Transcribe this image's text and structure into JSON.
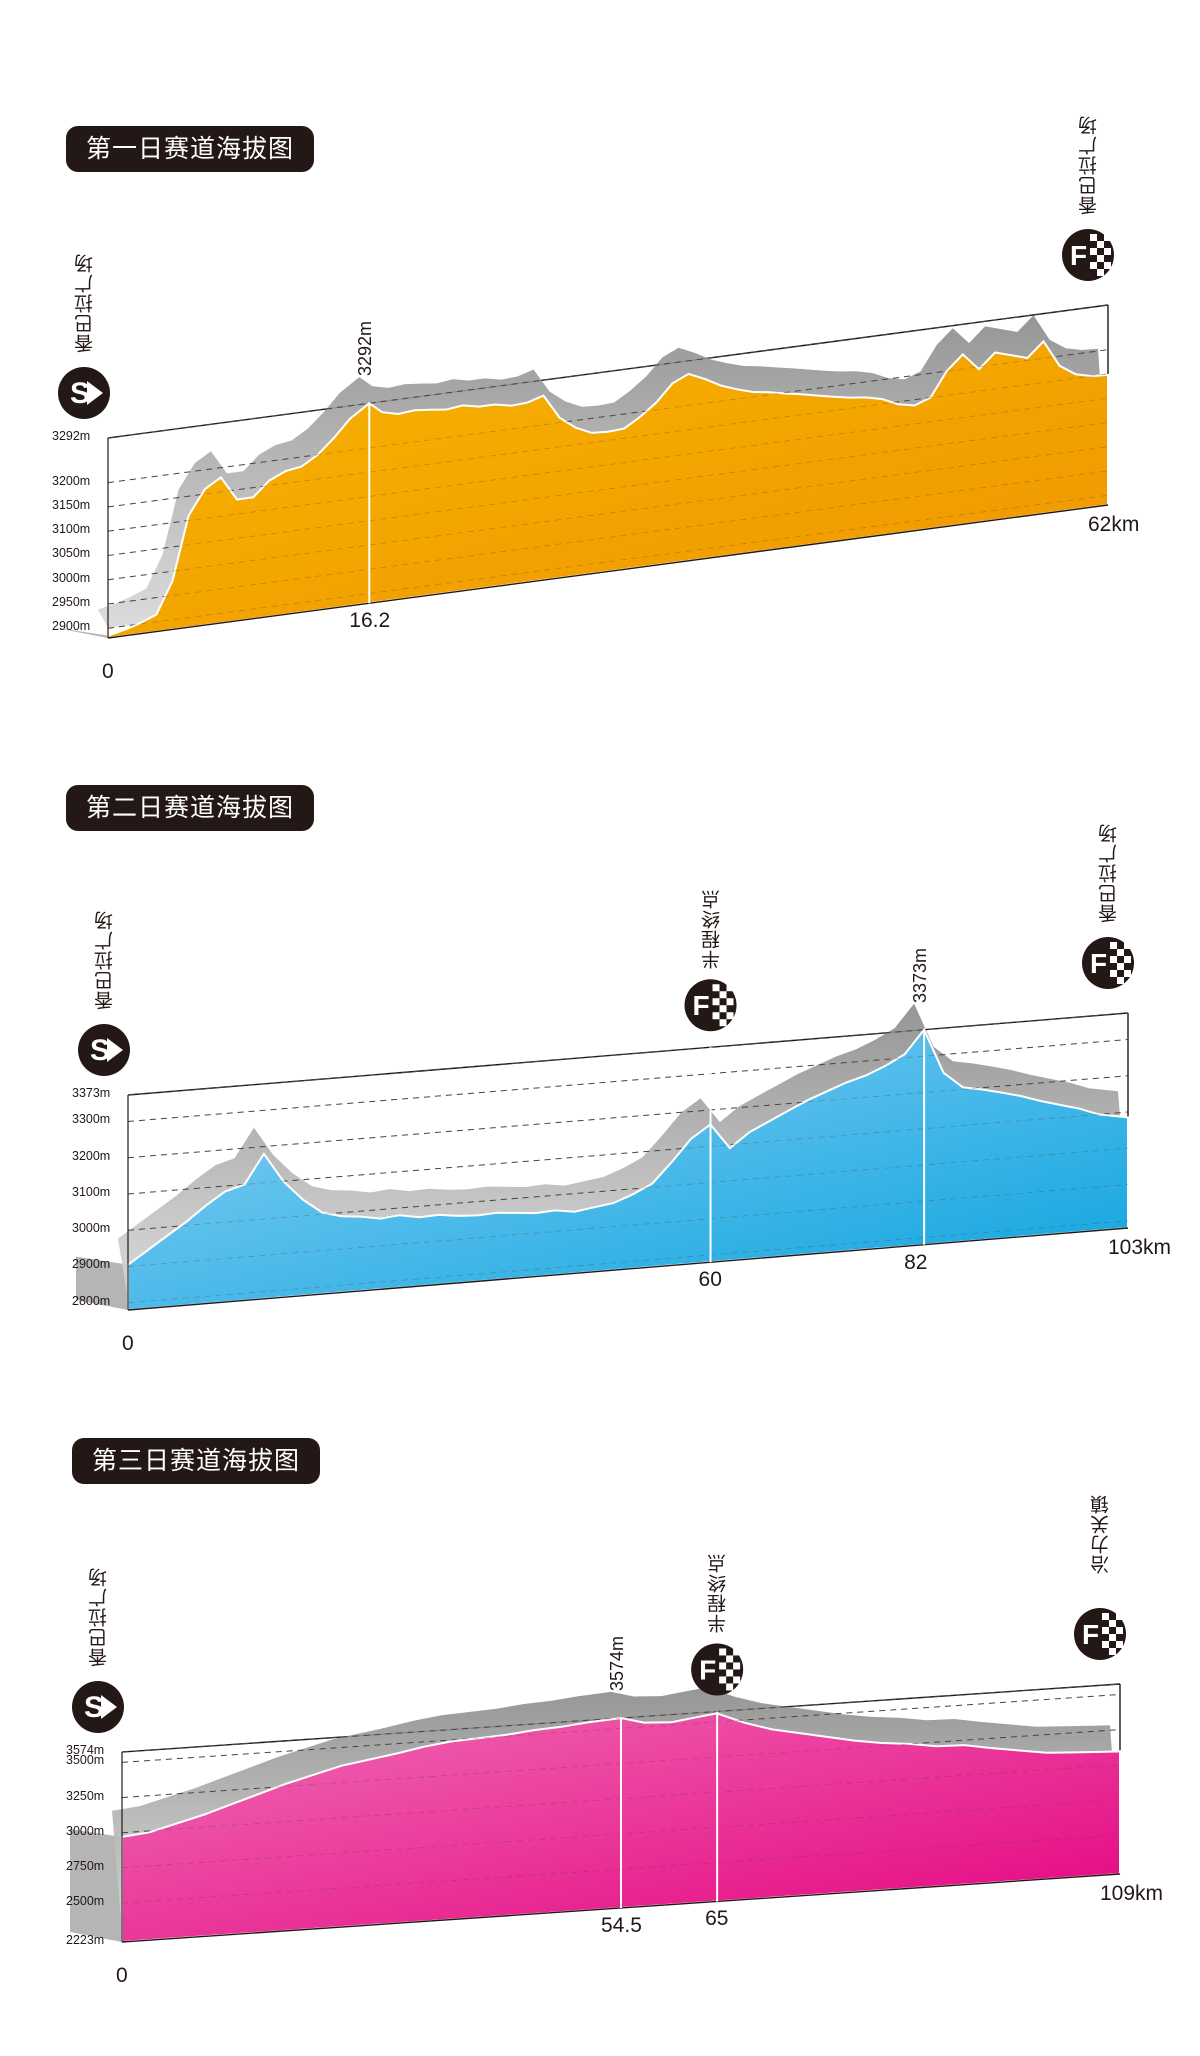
{
  "chart_data": [
    {
      "type": "area",
      "title": "第一日赛道海拔图",
      "start_label": "香巴拉广场",
      "finish_label": "香巴拉广场",
      "start_marker": "S",
      "finish_marker": "F",
      "x_start_label": "0",
      "x_end_label": "62km",
      "ylim": [
        2880,
        3292
      ],
      "y_ticks": [
        "2900m",
        "2950m",
        "3000m",
        "3050m",
        "3100m",
        "3150m",
        "3200m",
        "3292m"
      ],
      "y_tick_values": [
        2900,
        2950,
        3000,
        3050,
        3100,
        3150,
        3200,
        3292
      ],
      "xlim": [
        0,
        62
      ],
      "peak": {
        "x": 16.2,
        "x_label": "16.2",
        "elevation_label": "3292m"
      },
      "midpoint": null,
      "color_top": "#f7b500",
      "color_bottom": "#ef9400",
      "x": [
        0,
        1,
        2,
        3,
        4,
        5,
        6,
        7,
        8,
        9,
        10,
        11,
        12,
        13,
        14,
        15,
        16.2,
        17,
        18,
        19,
        20,
        21,
        22,
        23,
        24,
        25,
        26,
        27,
        28,
        29,
        30,
        31,
        32,
        33,
        34,
        35,
        36,
        37,
        38,
        39,
        40,
        41,
        42,
        43,
        44,
        45,
        46,
        47,
        48,
        49,
        50,
        51,
        52,
        53,
        54,
        55,
        56,
        57,
        58,
        59,
        60,
        61,
        62
      ],
      "y": [
        2885,
        2892,
        2902,
        2915,
        2980,
        3110,
        3160,
        3180,
        3130,
        3130,
        3160,
        3175,
        3180,
        3200,
        3230,
        3265,
        3292,
        3270,
        3262,
        3265,
        3262,
        3258,
        3262,
        3255,
        3255,
        3248,
        3250,
        3260,
        3210,
        3185,
        3170,
        3168,
        3170,
        3190,
        3215,
        3250,
        3265,
        3250,
        3232,
        3220,
        3210,
        3205,
        3198,
        3192,
        3185,
        3178,
        3172,
        3168,
        3160,
        3145,
        3138,
        3150,
        3200,
        3230,
        3195,
        3225,
        3215,
        3205,
        3235,
        3180,
        3158,
        3150,
        3148
      ]
    },
    {
      "type": "area",
      "title": "第二日赛道海拔图",
      "start_label": "香巴拉广场",
      "finish_label": "香巴拉广场",
      "start_marker": "S",
      "finish_marker": "F",
      "x_start_label": "0",
      "x_end_label": "103km",
      "ylim": [
        2780,
        3373
      ],
      "y_ticks": [
        "2800m",
        "2900m",
        "3000m",
        "3100m",
        "3200m",
        "3300m",
        "3373m"
      ],
      "y_tick_values": [
        2800,
        2900,
        3000,
        3100,
        3200,
        3300,
        3373
      ],
      "xlim": [
        0,
        103
      ],
      "peak": {
        "x": 82,
        "x_label": "82",
        "elevation_label": "3373m"
      },
      "midpoint": {
        "x": 60,
        "x_label": "60",
        "label": "半程终点",
        "marker": "F"
      },
      "color_top": "#8fd2f5",
      "color_bottom": "#08a2de",
      "x": [
        0,
        2,
        4,
        6,
        8,
        10,
        12,
        14,
        16,
        18,
        20,
        22,
        24,
        26,
        28,
        30,
        32,
        34,
        36,
        38,
        40,
        42,
        44,
        46,
        48,
        50,
        52,
        54,
        56,
        58,
        60,
        62,
        64,
        66,
        68,
        70,
        72,
        74,
        76,
        78,
        80,
        82,
        84,
        86,
        88,
        90,
        92,
        94,
        96,
        98,
        100,
        103
      ],
      "y": [
        2905,
        2940,
        2975,
        3010,
        3050,
        3085,
        3100,
        3180,
        3100,
        3045,
        3005,
        2990,
        2985,
        2975,
        2980,
        2970,
        2972,
        2965,
        2962,
        2965,
        2960,
        2955,
        2958,
        2950,
        2958,
        2965,
        2985,
        3010,
        3065,
        3125,
        3160,
        3090,
        3130,
        3155,
        3180,
        3205,
        3225,
        3245,
        3260,
        3282,
        3310,
        3373,
        3250,
        3205,
        3195,
        3182,
        3168,
        3150,
        3135,
        3120,
        3100,
        3085
      ]
    },
    {
      "type": "area",
      "title": "第三日赛道海拔图",
      "start_label": "香巴拉广场",
      "finish_label": "冶力关镇",
      "start_marker": "S",
      "finish_marker": "F",
      "x_start_label": "0",
      "x_end_label": "109km",
      "ylim": [
        2223,
        3574
      ],
      "y_ticks": [
        "2223m",
        "2500m",
        "2750m",
        "3000m",
        "3250m",
        "3500m",
        "3574m"
      ],
      "y_tick_values": [
        2223,
        2500,
        2750,
        3000,
        3250,
        3500,
        3574
      ],
      "xlim": [
        0,
        109
      ],
      "peak": {
        "x": 54.5,
        "x_label": "54.5",
        "elevation_label": "3574m"
      },
      "midpoint": {
        "x": 65,
        "x_label": "65",
        "label": "半程终点",
        "marker": "F"
      },
      "color_top": "#f06db5",
      "color_bottom": "#e4007f",
      "x": [
        0,
        3,
        6,
        9,
        12,
        15,
        18,
        21,
        24,
        27,
        30,
        33,
        36,
        39,
        42,
        45,
        48,
        51,
        54.5,
        57,
        60,
        63,
        65,
        68,
        71,
        74,
        77,
        80,
        83,
        86,
        89,
        92,
        95,
        98,
        101,
        104,
        107,
        109
      ],
      "y": [
        2970,
        2990,
        3040,
        3090,
        3150,
        3210,
        3270,
        3320,
        3370,
        3400,
        3430,
        3465,
        3490,
        3500,
        3510,
        3530,
        3540,
        3560,
        3574,
        3530,
        3520,
        3545,
        3560,
        3480,
        3420,
        3380,
        3340,
        3300,
        3270,
        3250,
        3220,
        3215,
        3180,
        3150,
        3120,
        3110,
        3100,
        3095
      ]
    }
  ]
}
